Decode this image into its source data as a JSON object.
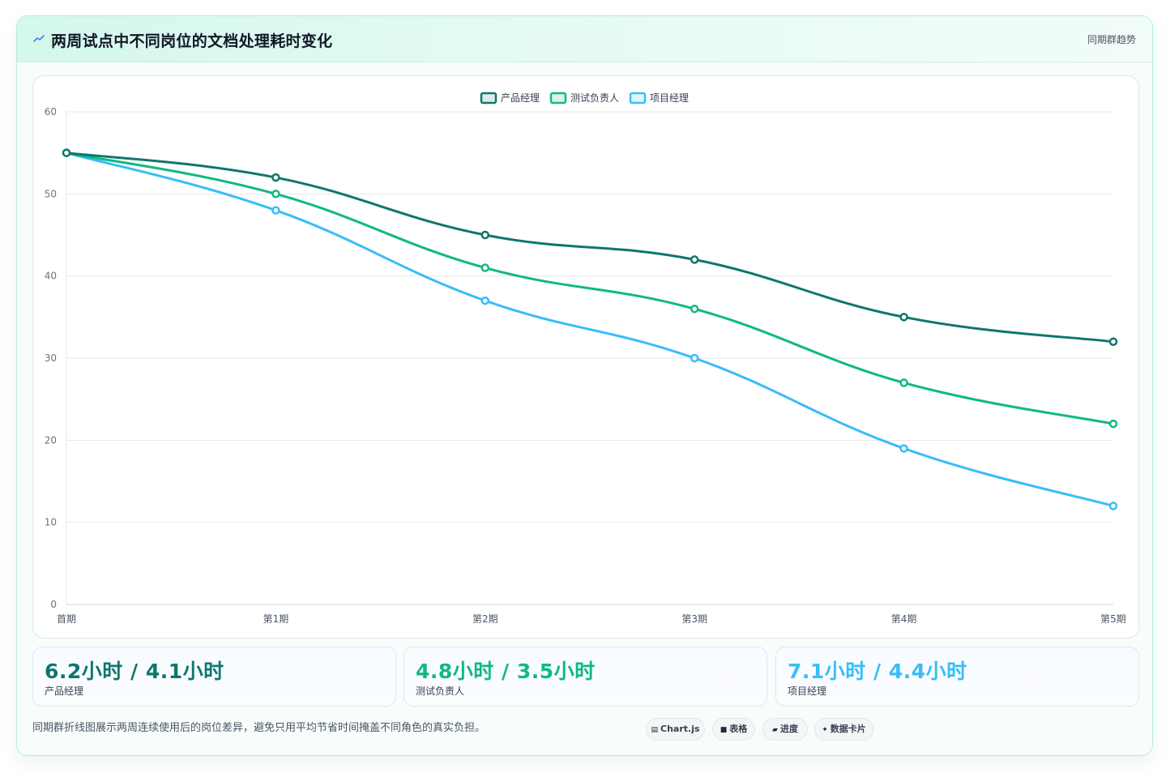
{
  "header": {
    "icon": "sparkline-icon",
    "title": "两周试点中不同岗位的文档处理耗时变化",
    "tag": "同期群趋势"
  },
  "chart_data": {
    "type": "line",
    "categories": [
      "首期",
      "第1期",
      "第2期",
      "第3期",
      "第4期",
      "第5期"
    ],
    "ylim": [
      0,
      60
    ],
    "yticks": [
      0,
      10,
      20,
      30,
      40,
      50,
      60
    ],
    "grid": true,
    "legend_position": "top-center",
    "series": [
      {
        "name": "产品经理",
        "color": "#0f766e",
        "values": [
          55,
          52,
          45,
          42,
          35,
          32
        ]
      },
      {
        "name": "测试负责人",
        "color": "#10b981",
        "values": [
          55,
          50,
          41,
          36,
          27,
          22
        ]
      },
      {
        "name": "项目经理",
        "color": "#38bdf8",
        "values": [
          55,
          48,
          37,
          30,
          19,
          12
        ]
      }
    ]
  },
  "stats": [
    {
      "value": "6.2小时 / 4.1小时",
      "label": "产品经理",
      "color": "#0f766e"
    },
    {
      "value": "4.8小时 / 3.5小时",
      "label": "测试负责人",
      "color": "#10b981"
    },
    {
      "value": "7.1小时 / 4.4小时",
      "label": "项目经理",
      "color": "#38bdf8"
    }
  ],
  "note": "同期群折线图展示两周连续使用后的岗位差异，避免只用平均节省时间掩盖不同角色的真实负担。",
  "pills": [
    {
      "icon": "chart-icon",
      "glyph": "▤",
      "label": "Chart.js"
    },
    {
      "icon": "table-icon",
      "glyph": "■",
      "label": "表格"
    },
    {
      "icon": "progress-icon",
      "glyph": "▰",
      "label": "进度"
    },
    {
      "icon": "card-icon",
      "glyph": "✦",
      "label": "数据卡片"
    }
  ]
}
